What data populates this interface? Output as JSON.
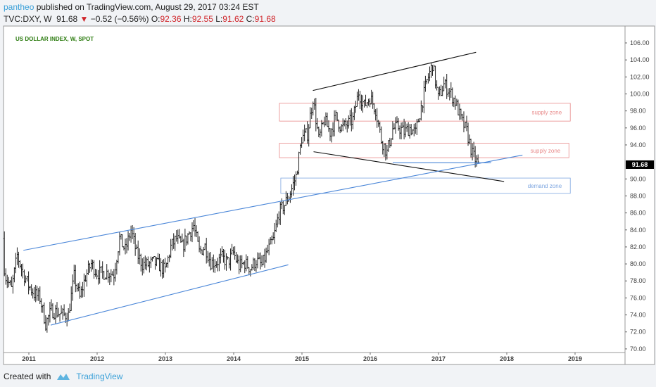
{
  "header": {
    "user": "pantheo",
    "published": "published on TradingView.com, August 29, 2017 03:24 EST",
    "symbol": "TVC:DXY, W",
    "last": "91.68",
    "change": "−0.52 (−0.56%)",
    "o_label": "O:",
    "o": "92.36",
    "h_label": "H:",
    "h": "92.55",
    "l_label": "L:",
    "l": "91.62",
    "c_label": "C:",
    "c": "91.68"
  },
  "footer": {
    "created": "Created with",
    "brand": "TradingView"
  },
  "colors": {
    "down": "#d0262b",
    "supply": "#e88a8a",
    "demand": "#7ea6e0",
    "trend_blue": "#4a86d8",
    "trend_black": "#111111",
    "title_green": "#2e7d12"
  },
  "chart_data": {
    "type": "ohlc",
    "title": "US DOLLAR INDEX, W, SPOT",
    "ylim": [
      69,
      107
    ],
    "yticks": [
      106,
      104,
      102,
      100,
      98,
      96,
      94,
      90,
      88,
      86,
      84,
      82,
      80,
      78,
      76,
      74,
      72,
      70
    ],
    "ytick_labels": [
      "106.00",
      "104.00",
      "102.00",
      "100.00",
      "98.00",
      "96.00",
      "94.00",
      "90.00",
      "88.00",
      "86.00",
      "84.00",
      "82.00",
      "80.00",
      "78.00",
      "76.00",
      "74.00",
      "72.00",
      "70.00"
    ],
    "last_price_label": "91.68",
    "last_price": 91.68,
    "xlim": [
      2010.63,
      2019.72
    ],
    "xticks": [
      2011,
      2012,
      2013,
      2014,
      2015,
      2016,
      2017,
      2018,
      2019
    ],
    "xtick_labels": [
      "2011",
      "2012",
      "2013",
      "2014",
      "2015",
      "2016",
      "2017",
      "2018",
      "2019"
    ],
    "monthly_start": 2010.6,
    "monthly_closes": [
      83,
      78.5,
      77,
      81,
      79,
      77.5,
      76.5,
      76,
      73,
      74.5,
      74.3,
      74,
      74,
      78.5,
      76,
      78.5,
      80,
      79,
      78.9,
      79,
      78.8,
      83,
      81.6,
      84,
      81.2,
      80,
      79.9,
      80.2,
      79.8,
      79.2,
      82,
      83,
      82,
      83.4,
      84.5,
      81.4,
      82.1,
      80.2,
      80.2,
      80.7,
      80.2,
      81.3,
      79.7,
      80.1,
      79.5,
      80.4,
      79.8,
      81.5,
      82.8,
      86,
      87,
      88.4,
      90.3,
      94.8,
      95.3,
      99.5,
      94.6,
      96.9,
      95.5,
      97.3,
      96,
      96.4,
      97,
      100.2,
      98.6,
      99.6,
      98.2,
      94.6,
      93.1,
      95.9,
      96.1,
      95.5,
      96,
      95.4,
      98.5,
      101.5,
      103.5,
      99.5,
      101.1,
      100.3,
      99.1,
      97,
      95.6,
      92.9,
      91.68
    ],
    "zones": [
      {
        "label": "supply zone",
        "low": 96.8,
        "high": 98.9,
        "x0": 2014.67,
        "x1": 2018.93,
        "kind": "supply"
      },
      {
        "label": "supply zone",
        "low": 92.5,
        "high": 94.2,
        "x0": 2014.67,
        "x1": 2018.91,
        "kind": "supply"
      },
      {
        "label": "demand zone",
        "low": 88.3,
        "high": 90.1,
        "x0": 2014.69,
        "x1": 2018.93,
        "kind": "demand"
      }
    ],
    "trendlines": [
      {
        "kind": "black",
        "p": [
          [
            2015.16,
            100.4
          ],
          [
            2017.55,
            104.9
          ]
        ]
      },
      {
        "kind": "black",
        "p": [
          [
            2015.17,
            93.2
          ],
          [
            2017.96,
            89.7
          ]
        ]
      },
      {
        "kind": "blue",
        "p": [
          [
            2016.33,
            91.9
          ],
          [
            2017.77,
            91.9
          ]
        ]
      },
      {
        "kind": "blue",
        "p": [
          [
            2010.92,
            81.6
          ],
          [
            2018.23,
            92.8
          ]
        ]
      },
      {
        "kind": "blue",
        "p": [
          [
            2011.32,
            72.8
          ],
          [
            2014.8,
            79.9
          ]
        ]
      }
    ]
  }
}
